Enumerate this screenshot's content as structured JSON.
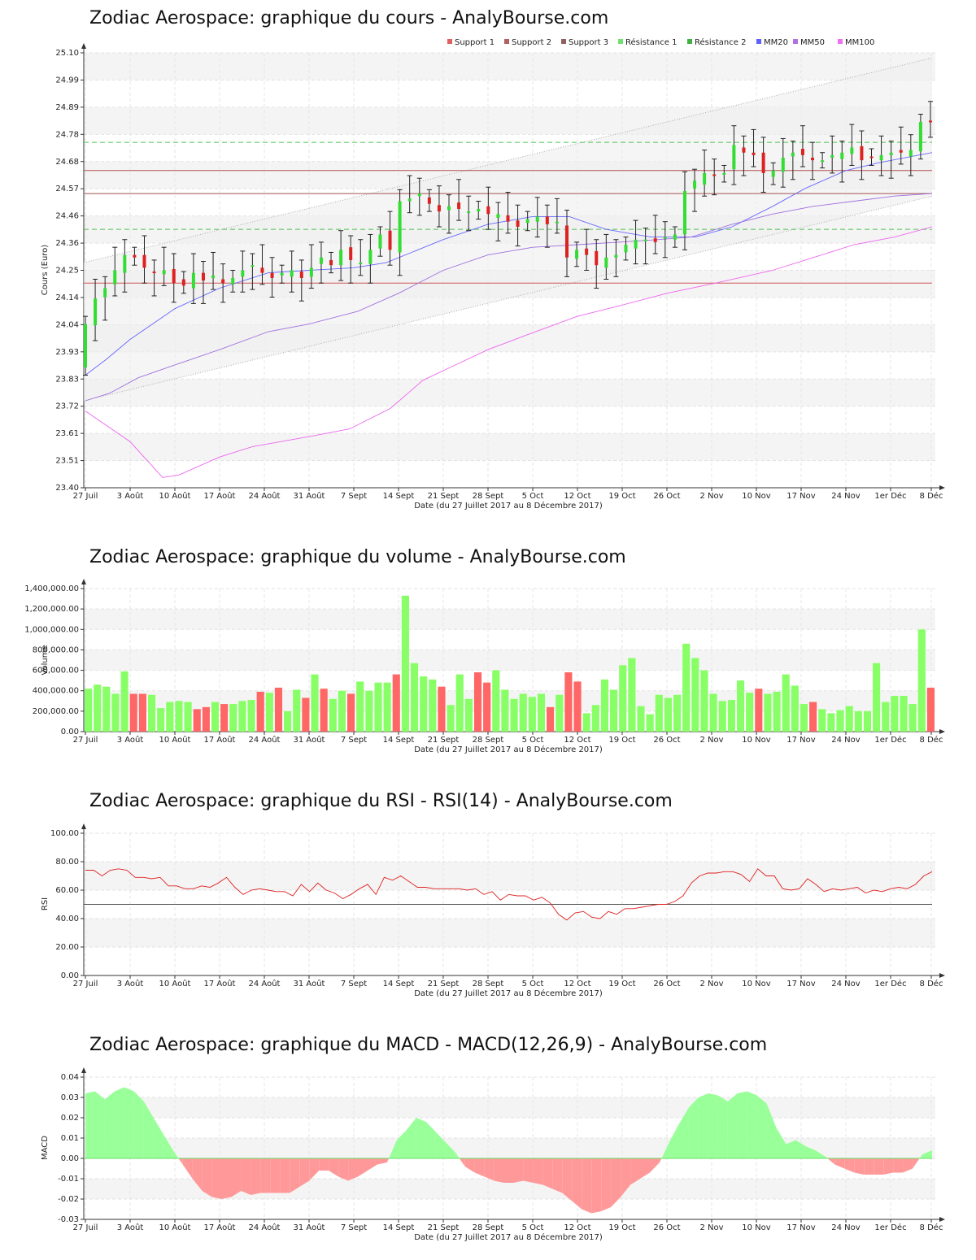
{
  "chart_data": [
    {
      "type": "candlestick",
      "title": "Zodiac Aerospace: graphique du cours - AnalyBourse.com",
      "xlabel": "Date (du 27 Juillet 2017 au 8 Décembre 2017)",
      "ylabel": "Cours (Euro)",
      "ylim": [
        23.4,
        25.1
      ],
      "yticks": [
        "23.40",
        "23.51",
        "23.61",
        "23.72",
        "23.83",
        "23.93",
        "24.04",
        "24.14",
        "24.25",
        "24.36",
        "24.46",
        "24.57",
        "24.68",
        "24.78",
        "24.89",
        "24.99",
        "25.10"
      ],
      "xticks": [
        "27 Juil",
        "3 Août",
        "10 Août",
        "17 Août",
        "24 Août",
        "31 Août",
        "7 Sept",
        "14 Sept",
        "21 Sept",
        "28 Sept",
        "5 Oct",
        "12 Oct",
        "19 Oct",
        "26 Oct",
        "2 Nov",
        "10 Nov",
        "17 Nov",
        "24 Nov",
        "1er Déc",
        "8 Déc"
      ],
      "legend": [
        "Support 1",
        "Support 2",
        "Support 3",
        "Résistance 1",
        "Résistance 2",
        "MM20",
        "MM50",
        "MM100"
      ],
      "legend_colors": [
        "#e06060",
        "#b06060",
        "#906060",
        "#70e070",
        "#40b040",
        "#6060ff",
        "#b070e0",
        "#f070f0"
      ],
      "legend_placement": "top-right",
      "grid": true,
      "levels": {
        "support1": 24.2,
        "support2": 24.55,
        "support3": 24.64,
        "resistance1": 24.41,
        "resistance2": 24.75
      },
      "closes": [
        24.04,
        24.14,
        24.18,
        24.25,
        24.31,
        24.3,
        24.26,
        24.24,
        24.25,
        24.2,
        24.19,
        24.24,
        24.21,
        24.23,
        24.2,
        24.22,
        24.25,
        24.27,
        24.24,
        24.22,
        24.24,
        24.25,
        24.22,
        24.26,
        24.3,
        24.27,
        24.33,
        24.29,
        24.28,
        24.33,
        24.39,
        24.33,
        24.52,
        24.53,
        24.55,
        24.51,
        24.48,
        24.5,
        24.49,
        24.48,
        24.49,
        24.47,
        24.47,
        24.44,
        24.42,
        24.45,
        24.46,
        24.43,
        24.44,
        24.3,
        24.33,
        24.31,
        24.27,
        24.3,
        24.31,
        24.35,
        24.37,
        24.37,
        24.36,
        24.38,
        24.39,
        24.56,
        24.6,
        24.63,
        24.62,
        24.63,
        24.74,
        24.71,
        24.7,
        24.63,
        24.64,
        24.69,
        24.71,
        24.7,
        24.68,
        24.68,
        24.7,
        24.71,
        24.73,
        24.68,
        24.69,
        24.7,
        24.71,
        24.71,
        24.72,
        24.83,
        24.83
      ]
    },
    {
      "type": "bar",
      "title": "Zodiac Aerospace: graphique du volume - AnalyBourse.com",
      "xlabel": "Date (du 27 Juillet 2017 au 8 Décembre 2017)",
      "ylabel": "Volume",
      "ylim": [
        0,
        1400000
      ],
      "yticks": [
        "0.00",
        "200,000.00",
        "400,000.00",
        "600,000.00",
        "800,000.00",
        "1,000,000.00",
        "1,200,000.00",
        "1,400,000.00"
      ],
      "values": [
        420000,
        460000,
        440000,
        370000,
        590000,
        370000,
        370000,
        360000,
        230000,
        290000,
        300000,
        290000,
        220000,
        240000,
        290000,
        270000,
        270000,
        300000,
        310000,
        390000,
        380000,
        430000,
        200000,
        410000,
        330000,
        560000,
        420000,
        320000,
        400000,
        370000,
        490000,
        400000,
        480000,
        480000,
        560000,
        1330000,
        670000,
        540000,
        510000,
        440000,
        260000,
        560000,
        320000,
        580000,
        480000,
        600000,
        410000,
        320000,
        370000,
        340000,
        370000,
        240000,
        360000,
        580000,
        490000,
        180000,
        260000,
        510000,
        410000,
        650000,
        720000,
        250000,
        170000,
        360000,
        330000,
        360000,
        860000,
        720000,
        600000,
        370000,
        300000,
        310000,
        500000,
        380000,
        420000,
        370000,
        390000,
        560000,
        450000,
        270000,
        290000,
        220000,
        180000,
        210000,
        250000,
        200000,
        200000,
        670000,
        290000,
        350000,
        350000,
        270000,
        1000000,
        430000
      ],
      "up": [
        1,
        1,
        1,
        1,
        1,
        0,
        0,
        1,
        1,
        1,
        1,
        1,
        0,
        0,
        1,
        0,
        1,
        1,
        1,
        0,
        1,
        0,
        1,
        1,
        0,
        1,
        0,
        1,
        1,
        0,
        1,
        1,
        1,
        1,
        0,
        1,
        1,
        1,
        1,
        0,
        1,
        1,
        1,
        0,
        0,
        1,
        1,
        1,
        1,
        1,
        1,
        0,
        1,
        0,
        0,
        1,
        1,
        1,
        1,
        1,
        1,
        1,
        1,
        1,
        1,
        1,
        1,
        1,
        1,
        1,
        1,
        1,
        1,
        1,
        0,
        1,
        1,
        1,
        1,
        1,
        0,
        1,
        1,
        1,
        1,
        1,
        1,
        1,
        1,
        1,
        1,
        1,
        1,
        0
      ]
    },
    {
      "type": "line",
      "title": "Zodiac Aerospace: graphique du RSI - RSI(14) - AnalyBourse.com",
      "xlabel": "Date (du 27 Juillet 2017 au 8 Décembre 2017)",
      "ylabel": "RSI",
      "ylim": [
        0,
        100
      ],
      "yticks": [
        "0.00",
        "20.00",
        "40.00",
        "60.00",
        "80.00",
        "100.00"
      ],
      "reference": 50,
      "values": [
        74,
        74,
        70,
        74,
        75,
        74,
        69,
        69,
        68,
        69,
        63,
        63,
        61,
        61,
        63,
        62,
        65,
        69,
        62,
        57,
        60,
        61,
        60,
        59,
        59,
        56,
        64,
        59,
        65,
        60,
        58,
        54,
        57,
        61,
        64,
        57,
        69,
        67,
        70,
        66,
        62,
        62,
        61,
        61,
        61,
        61,
        60,
        61,
        57,
        59,
        53,
        57,
        56,
        56,
        53,
        55,
        51,
        43,
        39,
        44,
        45,
        41,
        40,
        45,
        43,
        47,
        47,
        48,
        49,
        50,
        50,
        52,
        56,
        65,
        70,
        72,
        72,
        73,
        73,
        71,
        66,
        75,
        70,
        70,
        61,
        60,
        61,
        68,
        64,
        59,
        61,
        60,
        61,
        62,
        58,
        60,
        59,
        61,
        62,
        61,
        64,
        70,
        73
      ]
    },
    {
      "type": "area",
      "title": "Zodiac Aerospace: graphique du MACD - MACD(12,26,9) - AnalyBourse.com",
      "xlabel": "Date (du 27 Juillet 2017 au 8 Décembre 2017)",
      "ylabel": "MACD",
      "ylim": [
        -0.03,
        0.04
      ],
      "yticks": [
        "-0.03",
        "-0.02",
        "-0.01",
        "0.00",
        "0.01",
        "0.02",
        "0.03",
        "0.04"
      ],
      "values": [
        0.032,
        0.033,
        0.029,
        0.033,
        0.035,
        0.033,
        0.028,
        0.02,
        0.012,
        0.004,
        -0.003,
        -0.01,
        -0.016,
        -0.019,
        -0.02,
        -0.019,
        -0.016,
        -0.018,
        -0.017,
        -0.017,
        -0.017,
        -0.017,
        -0.014,
        -0.011,
        -0.006,
        -0.006,
        -0.009,
        -0.011,
        -0.009,
        -0.006,
        -0.003,
        -0.002,
        0.009,
        0.014,
        0.02,
        0.018,
        0.013,
        0.008,
        0.003,
        -0.004,
        -0.007,
        -0.009,
        -0.011,
        -0.012,
        -0.012,
        -0.011,
        -0.012,
        -0.013,
        -0.015,
        -0.017,
        -0.021,
        -0.025,
        -0.027,
        -0.026,
        -0.024,
        -0.019,
        -0.013,
        -0.01,
        -0.007,
        -0.002,
        0.008,
        0.017,
        0.025,
        0.03,
        0.032,
        0.031,
        0.028,
        0.032,
        0.033,
        0.031,
        0.027,
        0.015,
        0.007,
        0.009,
        0.006,
        0.004,
        0.001,
        -0.003,
        -0.005,
        -0.007,
        -0.008,
        -0.008,
        -0.008,
        -0.007,
        -0.007,
        -0.005,
        0.002,
        0.004
      ]
    }
  ]
}
